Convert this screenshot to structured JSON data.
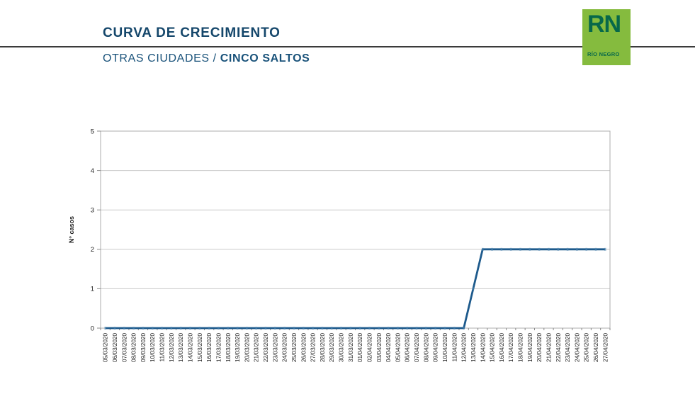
{
  "header": {
    "title": "CURVA DE CRECIMIENTO",
    "subtitle_prefix": "OTRAS CIUDADES / ",
    "subtitle_bold": "CINCO SALTOS",
    "logo": {
      "acronym": "RN",
      "name": "RÍO NEGRO",
      "bg_color": "#85bb3e",
      "fg_color": "#07684a"
    }
  },
  "chart_data": {
    "type": "line",
    "title": "",
    "xlabel": "",
    "ylabel": "N° casos",
    "ylim": [
      0,
      5
    ],
    "yticks": [
      0,
      1,
      2,
      3,
      4,
      5
    ],
    "grid": true,
    "legend_position": "none",
    "x_tick_rotation": -90,
    "line_color": "#1d5a8c",
    "marker_color": "#4e87b1",
    "gridline_color": "#c9c9c9",
    "plot_border_color": "#aeaeae",
    "tick_color": "#8a8a8a",
    "axis_label_color": "#222222",
    "categories": [
      "05/03/2020",
      "06/03/2020",
      "07/03/2020",
      "08/03/2020",
      "09/03/2020",
      "10/03/2020",
      "11/03/2020",
      "12/03/2020",
      "13/03/2020",
      "14/03/2020",
      "15/03/2020",
      "16/03/2020",
      "17/03/2020",
      "18/03/2020",
      "19/03/2020",
      "20/03/2020",
      "21/03/2020",
      "22/03/2020",
      "23/03/2020",
      "24/03/2020",
      "25/03/2020",
      "26/03/2020",
      "27/03/2020",
      "28/03/2020",
      "29/03/2020",
      "30/03/2020",
      "31/03/2020",
      "01/04/2020",
      "02/04/2020",
      "03/04/2020",
      "04/04/2020",
      "05/04/2020",
      "06/04/2020",
      "07/04/2020",
      "08/04/2020",
      "09/04/2020",
      "10/04/2020",
      "11/04/2020",
      "12/04/2020",
      "13/04/2020",
      "14/04/2020",
      "15/04/2020",
      "16/04/2020",
      "17/04/2020",
      "18/04/2020",
      "19/04/2020",
      "20/04/2020",
      "21/04/2020",
      "22/04/2020",
      "23/04/2020",
      "24/04/2020",
      "25/04/2020",
      "26/04/2020",
      "27/04/2020"
    ],
    "series": [
      {
        "name": "N° casos",
        "values": [
          0,
          0,
          0,
          0,
          0,
          0,
          0,
          0,
          0,
          0,
          0,
          0,
          0,
          0,
          0,
          0,
          0,
          0,
          0,
          0,
          0,
          0,
          0,
          0,
          0,
          0,
          0,
          0,
          0,
          0,
          0,
          0,
          0,
          0,
          0,
          0,
          0,
          0,
          0,
          1,
          2,
          2,
          2,
          2,
          2,
          2,
          2,
          2,
          2,
          2,
          2,
          2,
          2,
          2
        ]
      }
    ]
  }
}
